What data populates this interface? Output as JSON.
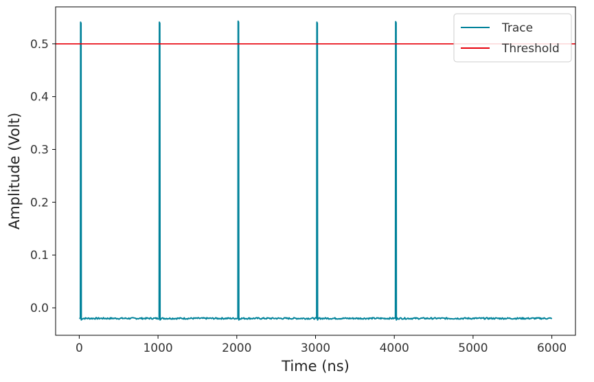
{
  "chart_data": {
    "type": "line",
    "xlabel": "Time (ns)",
    "ylabel": "Amplitude (Volt)",
    "xlim": [
      -300,
      6300
    ],
    "ylim": [
      -0.052,
      0.57
    ],
    "x_ticks": [
      0,
      1000,
      2000,
      3000,
      4000,
      5000,
      6000
    ],
    "x_tick_labels": [
      "0",
      "1000",
      "2000",
      "3000",
      "4000",
      "5000",
      "6000"
    ],
    "y_ticks": [
      0.0,
      0.1,
      0.2,
      0.3,
      0.4,
      0.5
    ],
    "y_tick_labels": [
      "0.0",
      "0.1",
      "0.2",
      "0.3",
      "0.4",
      "0.5"
    ],
    "grid": false,
    "legend_position": "top-right",
    "series": [
      {
        "name": "Trace",
        "color": "#00829a",
        "x_range": [
          0,
          6000
        ],
        "baseline": -0.02,
        "noise_amplitude": 0.0015,
        "pulses": [
          {
            "time": 20,
            "peak": 0.541
          },
          {
            "time": 1020,
            "peak": 0.541
          },
          {
            "time": 2020,
            "peak": 0.543
          },
          {
            "time": 3020,
            "peak": 0.541
          },
          {
            "time": 4020,
            "peak": 0.542
          }
        ]
      },
      {
        "name": "Threshold",
        "color": "#e8000b",
        "constant": 0.5
      }
    ]
  }
}
